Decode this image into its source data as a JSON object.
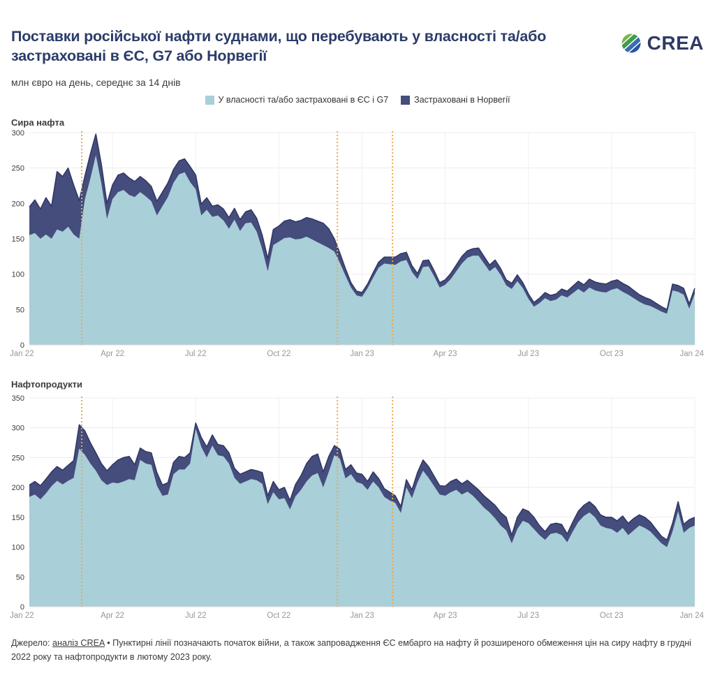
{
  "header": {
    "title": "Поставки російської нафти суднами, що перебувають у власності та/або застраховані в ЄС, G7 або Норвегії",
    "subtitle": "млн євро на день, середнє за 14 днів",
    "logo_text": "CREA"
  },
  "legend": [
    {
      "label": "У власності та/або застраховані в ЄС і G7",
      "color": "#a9cfd8"
    },
    {
      "label": "Застраховані в Норвегії",
      "color": "#454d7d"
    }
  ],
  "footer": {
    "source_prefix": "Джерело: ",
    "source_link": "аналіз CREA",
    "note": " • Пунктирні лінії позначають початок війни, а також запровадження ЄС ембарго на нафту й розширеного обмеження цін на сиру нафту в грудні 2022 року та нафтопродукти в лютому 2023 року."
  },
  "colors": {
    "title_navy": "#2b3c6a",
    "area_teal": "#a9cfd8",
    "area_navy": "#454d7d",
    "top_line_navy": "#2e3663",
    "dotted_orange": "#efa94a",
    "gridline": "#ececec"
  },
  "chart_data": [
    {
      "id": "crude-oil",
      "type": "area",
      "title": "Сира нафта",
      "stacked": true,
      "grid": true,
      "legend_position": "top-center",
      "ylim": [
        0,
        300
      ],
      "yticks": [
        0,
        50,
        100,
        150,
        200,
        250,
        300
      ],
      "x_unit": "months since Jan 2022",
      "x_start": 0,
      "x_step": 0.2,
      "xticks": [
        {
          "m": 0,
          "label": "Jan 22"
        },
        {
          "m": 3,
          "label": "Apr 22"
        },
        {
          "m": 6,
          "label": "Jul 22"
        },
        {
          "m": 9,
          "label": "Oct 22"
        },
        {
          "m": 12,
          "label": "Jan 23"
        },
        {
          "m": 15,
          "label": "Apr 23"
        },
        {
          "m": 18,
          "label": "Jul 23"
        },
        {
          "m": 21,
          "label": "Oct 23"
        },
        {
          "m": 24,
          "label": "Jan 24"
        }
      ],
      "vlines": [
        {
          "m": 1.89,
          "note": "початок війни"
        },
        {
          "m": 11.11,
          "note": "ембарго ЄС на сиру нафту, грудень 2022"
        },
        {
          "m": 13.1,
          "note": "обмеження цін / нафтопродукти, лютий 2023"
        }
      ],
      "series": [
        {
          "name": "У власності та/або застраховані в ЄС і G7",
          "color": "#a9cfd8",
          "values": [
            155,
            158,
            150,
            156,
            150,
            163,
            160,
            167,
            156,
            150,
            205,
            235,
            268,
            228,
            178,
            206,
            216,
            219,
            212,
            209,
            216,
            210,
            203,
            183,
            196,
            209,
            229,
            241,
            244,
            230,
            220,
            183,
            191,
            181,
            183,
            176,
            164,
            177,
            161,
            172,
            173,
            160,
            135,
            104,
            141,
            146,
            151,
            152,
            149,
            150,
            153,
            149,
            145,
            141,
            137,
            132,
            116,
            98,
            81,
            70,
            68,
            80,
            95,
            109,
            115,
            114,
            113,
            118,
            120,
            103,
            93,
            110,
            111,
            97,
            81,
            85,
            93,
            104,
            115,
            123,
            126,
            126,
            115,
            104,
            110,
            99,
            84,
            79,
            90,
            80,
            65,
            54,
            59,
            66,
            62,
            64,
            70,
            67,
            73,
            79,
            74,
            81,
            77,
            75,
            74,
            78,
            80,
            75,
            71,
            66,
            61,
            57,
            55,
            51,
            47,
            44,
            77,
            75,
            71,
            51,
            72
          ]
        },
        {
          "name": "Застраховані в Норвегії",
          "color": "#454d7d",
          "values": [
            40,
            47,
            42,
            52,
            46,
            82,
            78,
            83,
            70,
            54,
            33,
            35,
            30,
            27,
            22,
            20,
            24,
            24,
            24,
            22,
            22,
            22,
            21,
            20,
            20,
            20,
            19,
            19,
            19,
            22,
            20,
            16,
            17,
            15,
            15,
            16,
            16,
            16,
            16,
            16,
            18,
            19,
            20,
            18,
            22,
            22,
            24,
            25,
            25,
            26,
            27,
            29,
            30,
            31,
            27,
            18,
            14,
            10,
            7,
            6,
            6,
            6,
            7,
            8,
            9,
            10,
            11,
            11,
            11,
            9,
            8,
            9,
            9,
            8,
            7,
            7,
            8,
            9,
            10,
            10,
            10,
            11,
            10,
            9,
            10,
            9,
            8,
            8,
            9,
            8,
            7,
            6,
            7,
            8,
            8,
            8,
            9,
            9,
            10,
            11,
            11,
            12,
            12,
            12,
            12,
            12,
            12,
            12,
            12,
            11,
            10,
            10,
            9,
            8,
            7,
            6,
            9,
            9,
            9,
            7,
            8
          ]
        }
      ]
    },
    {
      "id": "oil-products",
      "type": "area",
      "title": "Нафтопродукти",
      "stacked": true,
      "grid": true,
      "ylim": [
        0,
        350
      ],
      "yticks": [
        0,
        50,
        100,
        150,
        200,
        250,
        300,
        350
      ],
      "x_unit": "months since Jan 2022",
      "x_start": 0,
      "x_step": 0.2,
      "xticks": [
        {
          "m": 0,
          "label": "Jan 22"
        },
        {
          "m": 3,
          "label": "Apr 22"
        },
        {
          "m": 6,
          "label": "Jul 22"
        },
        {
          "m": 9,
          "label": "Oct 22"
        },
        {
          "m": 12,
          "label": "Jan 23"
        },
        {
          "m": 15,
          "label": "Apr 23"
        },
        {
          "m": 18,
          "label": "Jul 23"
        },
        {
          "m": 21,
          "label": "Oct 23"
        },
        {
          "m": 24,
          "label": "Jan 24"
        }
      ],
      "vlines": [
        {
          "m": 1.89,
          "note": "початок війни"
        },
        {
          "m": 11.11,
          "note": "ембарго ЄС на сиру нафту, грудень 2022"
        },
        {
          "m": 13.1,
          "note": "обмеження цін / нафтопродукти, лютий 2023"
        }
      ],
      "series": [
        {
          "name": "У власності та/або застраховані в ЄС і G7",
          "color": "#a9cfd8",
          "values": [
            184,
            188,
            180,
            190,
            202,
            211,
            205,
            211,
            216,
            265,
            255,
            240,
            228,
            212,
            204,
            208,
            207,
            210,
            214,
            212,
            246,
            240,
            238,
            203,
            186,
            188,
            222,
            230,
            230,
            240,
            298,
            268,
            250,
            270,
            254,
            252,
            240,
            216,
            206,
            210,
            214,
            212,
            206,
            172,
            192,
            180,
            182,
            163,
            185,
            196,
            210,
            220,
            224,
            200,
            226,
            254,
            248,
            215,
            222,
            209,
            206,
            196,
            210,
            200,
            184,
            178,
            174,
            157,
            200,
            182,
            208,
            228,
            216,
            202,
            188,
            186,
            192,
            196,
            188,
            193,
            186,
            176,
            166,
            158,
            148,
            136,
            128,
            106,
            130,
            144,
            140,
            130,
            120,
            112,
            122,
            124,
            120,
            108,
            126,
            142,
            152,
            158,
            150,
            136,
            132,
            130,
            124,
            132,
            120,
            128,
            136,
            132,
            126,
            116,
            106,
            100,
            126,
            160,
            124,
            132,
            136
          ]
        },
        {
          "name": "Застраховані в Норвегії",
          "color": "#454d7d",
          "values": [
            20,
            22,
            23,
            24,
            24,
            24,
            24,
            26,
            29,
            40,
            40,
            35,
            30,
            28,
            24,
            30,
            39,
            40,
            38,
            26,
            20,
            20,
            20,
            22,
            18,
            20,
            20,
            22,
            20,
            18,
            10,
            16,
            18,
            18,
            18,
            18,
            18,
            16,
            16,
            16,
            16,
            16,
            19,
            14,
            18,
            16,
            18,
            15,
            20,
            24,
            30,
            32,
            32,
            26,
            26,
            16,
            16,
            15,
            16,
            15,
            16,
            14,
            16,
            15,
            14,
            14,
            12,
            11,
            13,
            14,
            17,
            18,
            19,
            17,
            15,
            16,
            18,
            18,
            18,
            19,
            18,
            20,
            20,
            20,
            22,
            22,
            22,
            14,
            20,
            20,
            20,
            20,
            16,
            14,
            16,
            16,
            18,
            14,
            16,
            18,
            18,
            18,
            18,
            18,
            18,
            20,
            20,
            20,
            20,
            20,
            18,
            18,
            16,
            14,
            12,
            12,
            14,
            16,
            14,
            14,
            14
          ]
        }
      ]
    }
  ]
}
